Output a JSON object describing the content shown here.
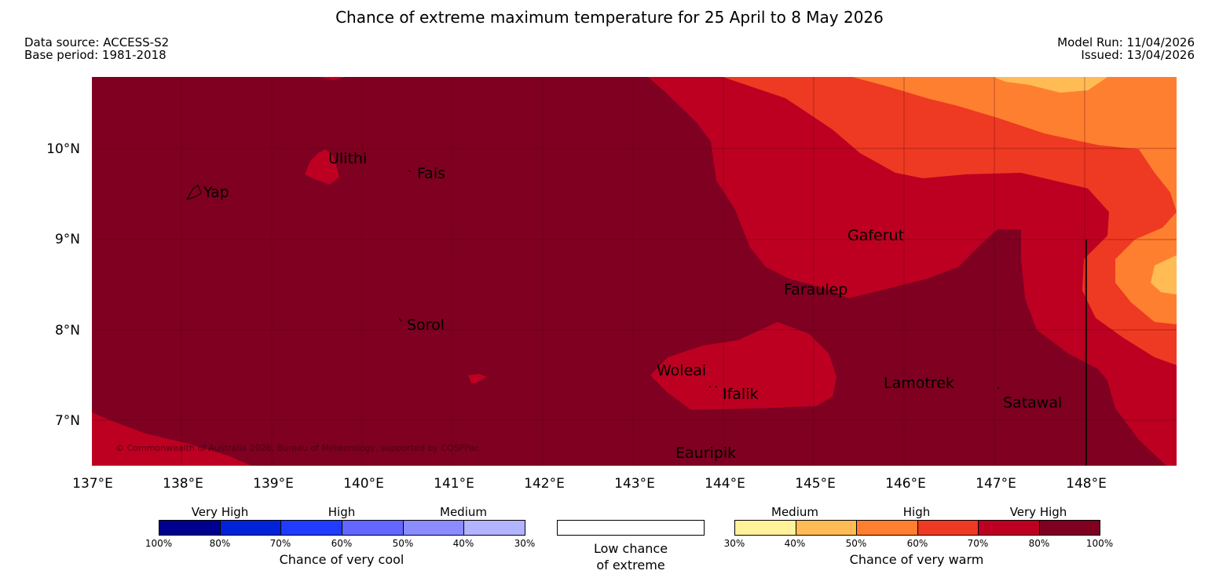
{
  "header": {
    "title": "Chance of extreme maximum temperature for 25 April to 8 May 2026",
    "source_line": "Data source: ACCESS-S2",
    "base_line": "Base period: 1981-2018",
    "model_run_line": "Model Run: 11/04/2026",
    "issued_line": "Issued: 13/04/2026"
  },
  "map": {
    "lon_labels": [
      "137°E",
      "138°E",
      "139°E",
      "140°E",
      "141°E",
      "142°E",
      "143°E",
      "144°E",
      "145°E",
      "146°E",
      "147°E",
      "148°E"
    ],
    "lat_labels": [
      "10°N",
      "9°N",
      "8°N",
      "7°N"
    ],
    "places": [
      "Ulithi",
      "Fais",
      "Yap",
      "Gaferut",
      "Faraulep",
      "Sorol",
      "Woleai",
      "Ifalik",
      "Lamotrek",
      "Satawal",
      "Eauripik"
    ],
    "copyright": "© Commonwealth of Australia 2026, Bureau of Meteorology, supported by COSPPac"
  },
  "legend": {
    "cool": {
      "categories": [
        "Very High",
        "High",
        "Medium"
      ],
      "ticks": [
        "100%",
        "80%",
        "70%",
        "60%",
        "50%",
        "40%",
        "30%"
      ],
      "caption": "Chance of very cool",
      "colors": [
        "#00008f",
        "#0022d8",
        "#1f3cff",
        "#6366ff",
        "#8b8cff",
        "#b3b4ff"
      ]
    },
    "neutral": {
      "caption_line1": "Low chance",
      "caption_line2": "of extreme"
    },
    "warm": {
      "categories": [
        "Medium",
        "High",
        "Very High"
      ],
      "ticks": [
        "30%",
        "40%",
        "50%",
        "60%",
        "70%",
        "80%",
        "100%"
      ],
      "caption": "Chance of very warm",
      "colors": [
        "#fff29a",
        "#ffbc55",
        "#ff7f30",
        "#ee3a22",
        "#bd0021",
        "#7f0021"
      ]
    }
  }
}
